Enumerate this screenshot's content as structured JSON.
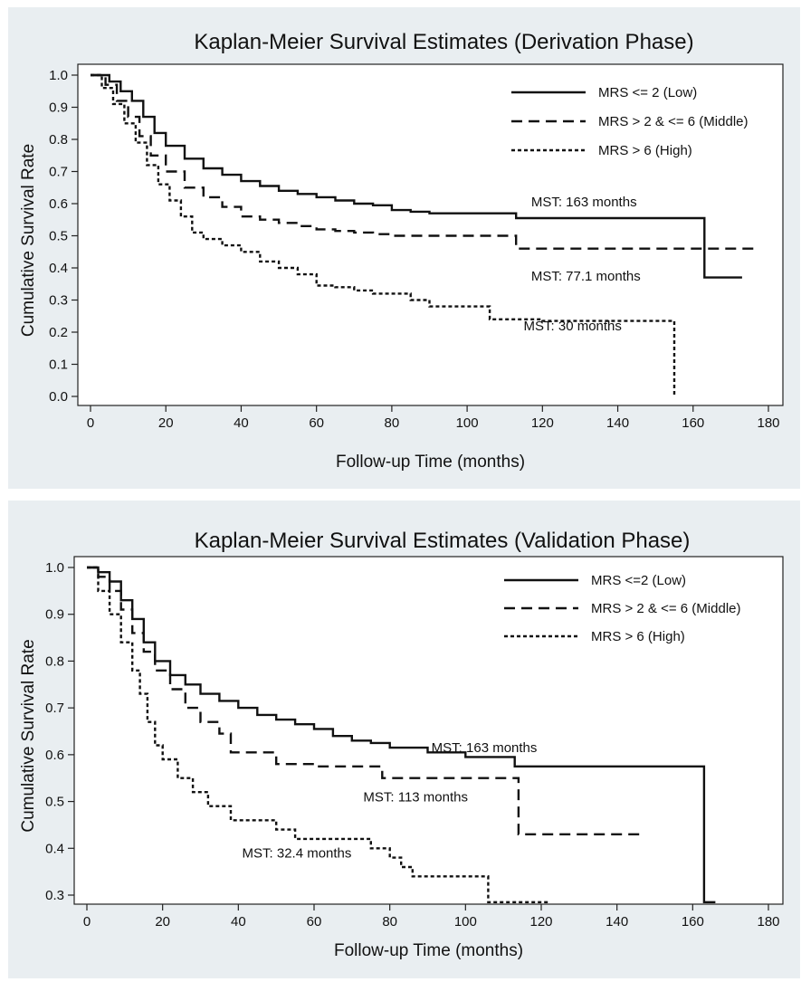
{
  "chart_data": [
    {
      "type": "line",
      "title": "Kaplan-Meier Survival Estimates (Derivation Phase)",
      "xlabel": "Follow-up Time (months)",
      "ylabel": "Cumulative Survival Rate",
      "xlim": [
        0,
        180
      ],
      "ylim": [
        0.0,
        1.0
      ],
      "xticks": [
        0,
        20,
        40,
        60,
        80,
        100,
        120,
        140,
        160,
        180
      ],
      "yticks": [
        0.0,
        0.1,
        0.2,
        0.3,
        0.4,
        0.5,
        0.6,
        0.7,
        0.8,
        0.9,
        1.0
      ],
      "legend": "top-right",
      "series": [
        {
          "name": "MRS <= 2 (Low)",
          "dash": "solid",
          "x": [
            0,
            5,
            8,
            11,
            14,
            17,
            20,
            25,
            30,
            35,
            40,
            45,
            50,
            55,
            60,
            65,
            70,
            75,
            80,
            85,
            90,
            100,
            113,
            163,
            173
          ],
          "y": [
            1.0,
            0.98,
            0.95,
            0.92,
            0.87,
            0.82,
            0.78,
            0.74,
            0.71,
            0.69,
            0.67,
            0.655,
            0.64,
            0.63,
            0.62,
            0.61,
            0.6,
            0.595,
            0.58,
            0.575,
            0.57,
            0.57,
            0.555,
            0.37,
            0.37
          ]
        },
        {
          "name": "MRS > 2 & <= 6 (Middle)",
          "dash": "dashed",
          "x": [
            0,
            4,
            7,
            10,
            13,
            16,
            20,
            25,
            30,
            35,
            40,
            45,
            50,
            55,
            60,
            65,
            70,
            75,
            80,
            100,
            113,
            177
          ],
          "y": [
            1.0,
            0.97,
            0.92,
            0.87,
            0.81,
            0.75,
            0.7,
            0.65,
            0.62,
            0.59,
            0.56,
            0.55,
            0.54,
            0.53,
            0.52,
            0.515,
            0.51,
            0.505,
            0.5,
            0.5,
            0.46,
            0.46
          ]
        },
        {
          "name": "MRS > 6 (High)",
          "dash": "dotted",
          "x": [
            0,
            3,
            6,
            9,
            12,
            15,
            18,
            21,
            24,
            27,
            30,
            35,
            40,
            45,
            50,
            55,
            60,
            65,
            70,
            75,
            80,
            85,
            90,
            106,
            120,
            155,
            155
          ],
          "y": [
            1.0,
            0.96,
            0.91,
            0.85,
            0.79,
            0.72,
            0.66,
            0.61,
            0.56,
            0.51,
            0.49,
            0.47,
            0.45,
            0.42,
            0.4,
            0.38,
            0.345,
            0.34,
            0.33,
            0.32,
            0.32,
            0.3,
            0.28,
            0.24,
            0.235,
            0.235,
            0.0
          ]
        }
      ],
      "annotations": [
        {
          "text": "MST: 163 months",
          "x": 117,
          "y": 0.605
        },
        {
          "text": "MST: 77.1 months",
          "x": 117,
          "y": 0.375
        },
        {
          "text": "MST: 30 months",
          "x": 115,
          "y": 0.22
        }
      ]
    },
    {
      "type": "line",
      "title": "Kaplan-Meier Survival Estimates (Validation Phase)",
      "xlabel": "Follow-up Time (months)",
      "ylabel": "Cumulative Survival Rate",
      "xlim": [
        0,
        180
      ],
      "ylim": [
        0.3,
        1.0
      ],
      "xticks": [
        0,
        20,
        40,
        60,
        80,
        100,
        120,
        140,
        160,
        180
      ],
      "yticks": [
        0.3,
        0.4,
        0.5,
        0.6,
        0.7,
        0.8,
        0.9,
        1.0
      ],
      "legend": "top-right",
      "series": [
        {
          "name": "MRS <=2 (Low)",
          "dash": "solid",
          "x": [
            0,
            3,
            6,
            9,
            12,
            15,
            18,
            22,
            26,
            30,
            35,
            40,
            45,
            50,
            55,
            60,
            65,
            70,
            75,
            80,
            90,
            100,
            113,
            163,
            166
          ],
          "y": [
            1.0,
            0.99,
            0.97,
            0.93,
            0.89,
            0.84,
            0.8,
            0.77,
            0.75,
            0.73,
            0.715,
            0.7,
            0.685,
            0.675,
            0.665,
            0.655,
            0.64,
            0.63,
            0.625,
            0.615,
            0.605,
            0.595,
            0.575,
            0.285,
            0.285
          ]
        },
        {
          "name": "MRS > 2 & <= 6 (Middle)",
          "dash": "dashed",
          "x": [
            0,
            3,
            6,
            9,
            12,
            15,
            18,
            22,
            26,
            30,
            35,
            38,
            50,
            60,
            75,
            78,
            100,
            113,
            114,
            146
          ],
          "y": [
            1.0,
            0.98,
            0.95,
            0.91,
            0.86,
            0.82,
            0.78,
            0.74,
            0.7,
            0.67,
            0.645,
            0.605,
            0.58,
            0.575,
            0.575,
            0.55,
            0.55,
            0.55,
            0.43,
            0.43
          ]
        },
        {
          "name": "MRS > 6 (High)",
          "dash": "dotted",
          "x": [
            0,
            3,
            6,
            9,
            12,
            14,
            16,
            18,
            20,
            24,
            28,
            32,
            38,
            50,
            55,
            60,
            70,
            75,
            80,
            83,
            86,
            100,
            106,
            122
          ],
          "y": [
            1.0,
            0.95,
            0.9,
            0.84,
            0.78,
            0.73,
            0.67,
            0.62,
            0.59,
            0.55,
            0.52,
            0.49,
            0.46,
            0.44,
            0.42,
            0.42,
            0.42,
            0.4,
            0.38,
            0.36,
            0.34,
            0.34,
            0.285,
            0.285
          ]
        }
      ],
      "annotations": [
        {
          "text": "MST: 163 months",
          "x": 91,
          "y": 0.615
        },
        {
          "text": "MST: 113 months",
          "x": 73,
          "y": 0.51
        },
        {
          "text": "MST: 32.4 months",
          "x": 41,
          "y": 0.39
        }
      ]
    }
  ]
}
